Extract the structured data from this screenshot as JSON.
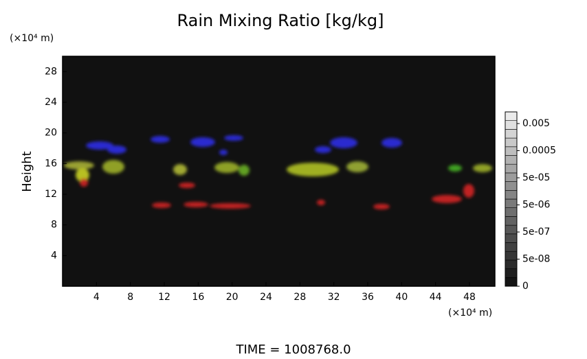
{
  "chart_data": {
    "type": "heatmap",
    "title": "Rain Mixing Ratio [kg/kg]",
    "y_label": "Height",
    "y_unit": "(×10⁴ m)",
    "x_unit": "(×10⁴ m)",
    "footer": "TIME = 1008768.0",
    "xlim": [
      0,
      51
    ],
    "xticks": [
      4,
      8,
      12,
      16,
      20,
      24,
      28,
      32,
      36,
      40,
      44,
      48
    ],
    "ylim": [
      0,
      30
    ],
    "yticks": [
      4,
      8,
      12,
      16,
      20,
      24,
      28
    ],
    "colorbar_ticks": [
      0,
      {
        "value": 5e-08,
        "label": "5e-08"
      },
      {
        "value": 5e-07,
        "label": "5e-07"
      },
      {
        "value": 5e-06,
        "label": "5e-06"
      },
      {
        "value": 5e-05,
        "label": "5e-05"
      },
      0.0005,
      0.005
    ],
    "background": "#111111"
  }
}
